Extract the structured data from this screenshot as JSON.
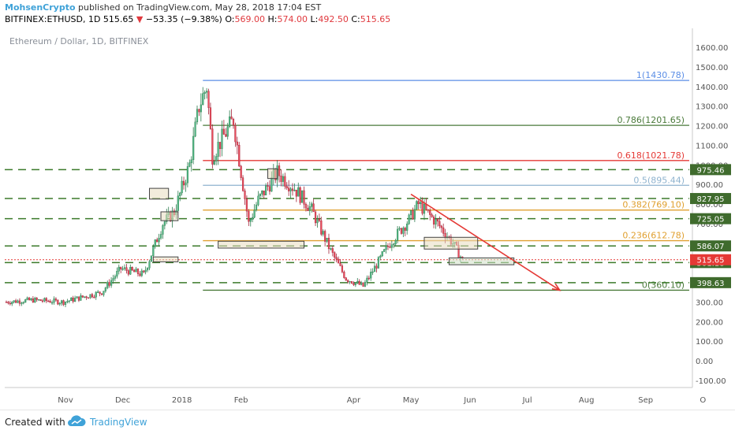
{
  "header": {
    "author": "MohsenCrypto",
    "published": "published on TradingView.com, May 28, 2018 17:04 EST",
    "symbol": "BITFINEX:ETHUSD, 1D",
    "last": "515.65",
    "change_arrow": "▼",
    "change": "−53.35 (−9.38%)",
    "o_label": "O:",
    "o": "569.00",
    "h_label": "H:",
    "h": "574.00",
    "l_label": "L:",
    "l": "492.50",
    "c_label": "C:",
    "c": "515.65"
  },
  "colors": {
    "up": "#53b987",
    "down": "#eb4d5c",
    "fib_blue": "#5b8ee6",
    "fib_green": "#4a7a3a",
    "fib_red": "#e53935",
    "fib_lightblue": "#8fb3cf",
    "fib_orange": "#e0a030",
    "support_dashed": "#3b7a2a",
    "trend_arrow": "#e53935",
    "label_green": "#3f6b2d",
    "label_red": "#e53935"
  },
  "chart_data": {
    "type": "candlestick",
    "title": "Ethereum / Dollar, 1D, BITFINEX",
    "x_ticks": [
      "Nov",
      "Dec",
      "2018",
      "Feb",
      "Apr",
      "May",
      "Jun",
      "Jul",
      "Aug",
      "Sep",
      "O"
    ],
    "y_ticks": [
      "1600.00",
      "1500.00",
      "1400.00",
      "1300.00",
      "1200.00",
      "1100.00",
      "1000.00",
      "900.00",
      "800.00",
      "700.00",
      "600.00",
      "500.00",
      "400.00",
      "300.00",
      "200.00",
      "100.00",
      "0.00",
      "-100.00"
    ],
    "ylim": [
      -150,
      1700
    ],
    "fib_levels": [
      {
        "ratio": "1",
        "price": 1430.78,
        "label": "1(1430.78)",
        "color": "#5b8ee6"
      },
      {
        "ratio": "0.786",
        "price": 1201.65,
        "label": "0.786(1201.65)",
        "color": "#4a7a3a"
      },
      {
        "ratio": "0.618",
        "price": 1021.78,
        "label": "0.618(1021.78)",
        "color": "#e53935"
      },
      {
        "ratio": "0.5",
        "price": 895.44,
        "label": "0.5(895.44)",
        "color": "#8fb3cf"
      },
      {
        "ratio": "0.382",
        "price": 769.1,
        "label": "0.382(769.10)",
        "color": "#e0a030"
      },
      {
        "ratio": "0.236",
        "price": 612.78,
        "label": "0.236(612.78)",
        "color": "#e0a030"
      },
      {
        "ratio": "0",
        "price": 360.1,
        "label": "0(360.10)",
        "color": "#4a7a3a"
      }
    ],
    "support_levels": [
      "975.46",
      "827.95",
      "725.05",
      "586.07",
      "501.18",
      "398.63"
    ],
    "last_price": "515.65",
    "support_values": [
      975.46,
      827.95,
      725.05,
      586.07,
      501.18,
      398.63
    ],
    "trend": {
      "from": [
        "2018-05-01",
        850
      ],
      "to": [
        "2018-07-18",
        360
      ]
    },
    "price_path": [
      [
        "2017-10-01",
        300
      ],
      [
        "2017-10-15",
        310
      ],
      [
        "2017-10-31",
        300
      ],
      [
        "2017-11-20",
        350
      ],
      [
        "2017-11-30",
        470
      ],
      [
        "2017-12-12",
        440
      ],
      [
        "2017-12-22",
        700
      ],
      [
        "2017-12-28",
        760
      ],
      [
        "2018-01-05",
        1000
      ],
      [
        "2018-01-10",
        1300
      ],
      [
        "2018-01-14",
        1400
      ],
      [
        "2018-01-17",
        1050
      ],
      [
        "2018-01-28",
        1230
      ],
      [
        "2018-02-05",
        700
      ],
      [
        "2018-02-10",
        820
      ],
      [
        "2018-02-20",
        960
      ],
      [
        "2018-03-01",
        880
      ],
      [
        "2018-03-10",
        770
      ],
      [
        "2018-03-20",
        560
      ],
      [
        "2018-03-28",
        420
      ],
      [
        "2018-04-06",
        380
      ],
      [
        "2018-04-20",
        600
      ],
      [
        "2018-04-30",
        720
      ],
      [
        "2018-05-05",
        800
      ],
      [
        "2018-05-15",
        700
      ],
      [
        "2018-05-23",
        600
      ],
      [
        "2018-05-28",
        515
      ]
    ]
  },
  "footer": {
    "created_with": "Created with",
    "brand": "TradingView"
  }
}
